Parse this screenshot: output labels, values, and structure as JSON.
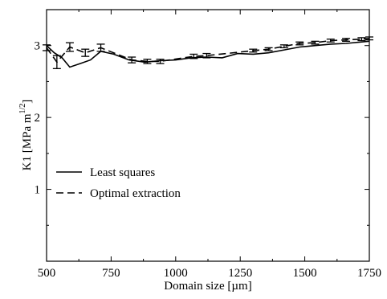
{
  "chart_data": {
    "type": "line",
    "title": "",
    "xlabel": "Domain size [µm]",
    "ylabel_main": "K1 [MPa m",
    "ylabel_exponent": "1/2",
    "ylabel_close": "]",
    "xlim": [
      500,
      1750
    ],
    "ylim": [
      0,
      3.5
    ],
    "x_ticks": [
      500,
      750,
      1000,
      1250,
      1500,
      1750
    ],
    "y_ticks": [
      1,
      2,
      3
    ],
    "grid": false,
    "legend_position": "lower-left",
    "series": [
      {
        "name": "Least squares",
        "line_style": "solid",
        "color": "#000000",
        "x": [
          500,
          530,
          560,
          590,
          630,
          670,
          710,
          760,
          820,
          880,
          940,
          1000,
          1060,
          1120,
          1180,
          1240,
          1300,
          1360,
          1420,
          1480,
          1540,
          1600,
          1660,
          1720,
          1750
        ],
        "y": [
          3.0,
          2.9,
          2.83,
          2.7,
          2.75,
          2.8,
          2.92,
          2.88,
          2.8,
          2.77,
          2.79,
          2.8,
          2.83,
          2.84,
          2.83,
          2.89,
          2.88,
          2.9,
          2.94,
          2.98,
          3.0,
          3.02,
          3.03,
          3.05,
          3.06
        ]
      },
      {
        "name": "Optimal extraction",
        "line_style": "dashed",
        "color": "#000000",
        "x": [
          500,
          540,
          590,
          650,
          710,
          830,
          890,
          940,
          1070,
          1120,
          1300,
          1360,
          1420,
          1480,
          1540,
          1600,
          1660,
          1720,
          1750
        ],
        "y": [
          2.97,
          2.77,
          2.98,
          2.9,
          2.97,
          2.8,
          2.78,
          2.78,
          2.85,
          2.86,
          2.93,
          2.95,
          2.99,
          3.03,
          3.04,
          3.07,
          3.08,
          3.09,
          3.1
        ],
        "err": [
          0.04,
          0.09,
          0.06,
          0.05,
          0.05,
          0.04,
          0.03,
          0.03,
          0.03,
          0.03,
          0.02,
          0.02,
          0.02,
          0.02,
          0.02,
          0.02,
          0.02,
          0.02,
          0.02
        ]
      }
    ]
  }
}
